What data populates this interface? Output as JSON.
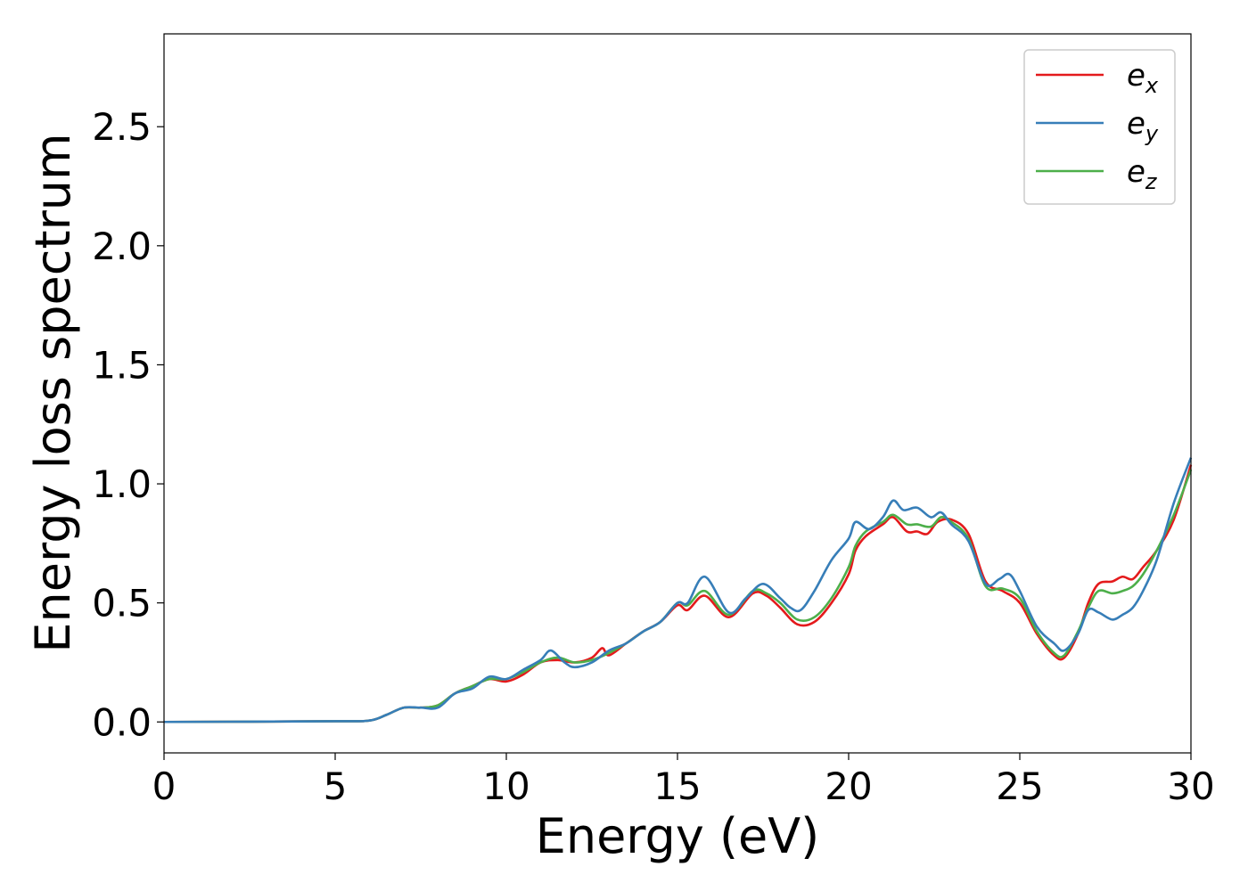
{
  "chart_data": {
    "type": "line",
    "title": "",
    "xlabel": "Energy (eV)",
    "ylabel": "Energy loss spectrum",
    "xlim": [
      0,
      30
    ],
    "ylim": [
      -0.13,
      2.89
    ],
    "xticks": [
      0,
      5,
      10,
      15,
      20,
      25,
      30
    ],
    "xtick_labels": [
      "0",
      "5",
      "10",
      "15",
      "20",
      "25",
      "30"
    ],
    "yticks": [
      0.0,
      0.5,
      1.0,
      1.5,
      2.0,
      2.5
    ],
    "ytick_labels": [
      "0.0",
      "0.5",
      "1.0",
      "1.5",
      "2.0",
      "2.5"
    ],
    "grid": false,
    "legend_position": "top-right",
    "series": [
      {
        "name": "e_x",
        "label_base": "e",
        "label_sub": "x",
        "color": "#e41a1c",
        "x": [
          0,
          5,
          6,
          6.5,
          7,
          7.5,
          8,
          8.5,
          9,
          9.5,
          10,
          10.5,
          11,
          11.5,
          12,
          12.5,
          12.8,
          13,
          13.5,
          14,
          14.5,
          15,
          15.3,
          15.8,
          16.5,
          17.2,
          17.6,
          18,
          18.5,
          19,
          19.5,
          20,
          20.2,
          20.5,
          21,
          21.3,
          21.7,
          22,
          22.3,
          22.6,
          23,
          23.5,
          24,
          24.5,
          25,
          25.5,
          26,
          26.3,
          26.7,
          27,
          27.3,
          27.7,
          28,
          28.3,
          28.6,
          29,
          29.5,
          30
        ],
        "y": [
          0,
          0.003,
          0.006,
          0.03,
          0.06,
          0.06,
          0.07,
          0.12,
          0.15,
          0.18,
          0.17,
          0.2,
          0.25,
          0.26,
          0.25,
          0.27,
          0.31,
          0.28,
          0.33,
          0.38,
          0.42,
          0.49,
          0.47,
          0.53,
          0.44,
          0.54,
          0.53,
          0.48,
          0.41,
          0.42,
          0.5,
          0.62,
          0.72,
          0.78,
          0.83,
          0.86,
          0.8,
          0.8,
          0.79,
          0.84,
          0.85,
          0.79,
          0.59,
          0.55,
          0.5,
          0.37,
          0.28,
          0.27,
          0.37,
          0.5,
          0.58,
          0.59,
          0.61,
          0.6,
          0.65,
          0.72,
          0.85,
          1.08
        ]
      },
      {
        "name": "e_y",
        "label_base": "e",
        "label_sub": "y",
        "color": "#377eb8",
        "x": [
          0,
          5,
          6,
          6.5,
          7,
          7.5,
          8,
          8.5,
          9,
          9.5,
          10,
          10.5,
          11,
          11.3,
          11.7,
          12,
          12.5,
          13,
          13.5,
          14,
          14.5,
          15,
          15.3,
          15.8,
          16.5,
          17,
          17.5,
          18,
          18.3,
          18.6,
          19,
          19.5,
          20,
          20.2,
          20.6,
          21,
          21.3,
          21.6,
          22,
          22.4,
          22.7,
          23,
          23.5,
          24,
          24.4,
          24.7,
          25,
          25.5,
          26,
          26.3,
          26.7,
          27,
          27.3,
          27.7,
          28,
          28.3,
          28.6,
          29,
          29.5,
          30
        ],
        "y": [
          0,
          0.003,
          0.006,
          0.03,
          0.06,
          0.06,
          0.06,
          0.12,
          0.14,
          0.19,
          0.18,
          0.22,
          0.26,
          0.3,
          0.25,
          0.23,
          0.25,
          0.3,
          0.33,
          0.38,
          0.42,
          0.5,
          0.5,
          0.61,
          0.46,
          0.52,
          0.58,
          0.52,
          0.48,
          0.47,
          0.55,
          0.68,
          0.77,
          0.84,
          0.81,
          0.86,
          0.93,
          0.89,
          0.9,
          0.86,
          0.88,
          0.83,
          0.76,
          0.58,
          0.6,
          0.62,
          0.55,
          0.4,
          0.33,
          0.3,
          0.37,
          0.47,
          0.46,
          0.43,
          0.45,
          0.48,
          0.55,
          0.68,
          0.92,
          1.11
        ]
      },
      {
        "name": "e_z",
        "label_base": "e",
        "label_sub": "z",
        "color": "#4daf4a",
        "x": [
          0,
          5,
          6,
          6.5,
          7,
          7.5,
          8,
          8.5,
          9,
          9.5,
          10,
          10.5,
          11,
          11.5,
          12,
          12.5,
          13,
          13.5,
          14,
          14.5,
          15,
          15.3,
          15.8,
          16.5,
          17.2,
          17.6,
          18,
          18.5,
          19,
          19.5,
          20,
          20.2,
          20.5,
          21,
          21.3,
          21.7,
          22,
          22.4,
          22.7,
          23,
          23.5,
          24,
          24.5,
          25,
          25.5,
          26,
          26.3,
          26.7,
          27,
          27.3,
          27.7,
          28,
          28.3,
          28.6,
          29,
          29.5,
          30
        ],
        "y": [
          0,
          0.003,
          0.006,
          0.03,
          0.06,
          0.06,
          0.07,
          0.12,
          0.15,
          0.18,
          0.18,
          0.21,
          0.25,
          0.27,
          0.25,
          0.26,
          0.29,
          0.33,
          0.38,
          0.42,
          0.5,
          0.49,
          0.55,
          0.45,
          0.55,
          0.54,
          0.5,
          0.43,
          0.44,
          0.52,
          0.65,
          0.74,
          0.8,
          0.84,
          0.87,
          0.83,
          0.83,
          0.82,
          0.86,
          0.84,
          0.77,
          0.57,
          0.56,
          0.52,
          0.38,
          0.29,
          0.28,
          0.38,
          0.48,
          0.55,
          0.54,
          0.55,
          0.57,
          0.62,
          0.72,
          0.87,
          1.06
        ]
      }
    ]
  }
}
